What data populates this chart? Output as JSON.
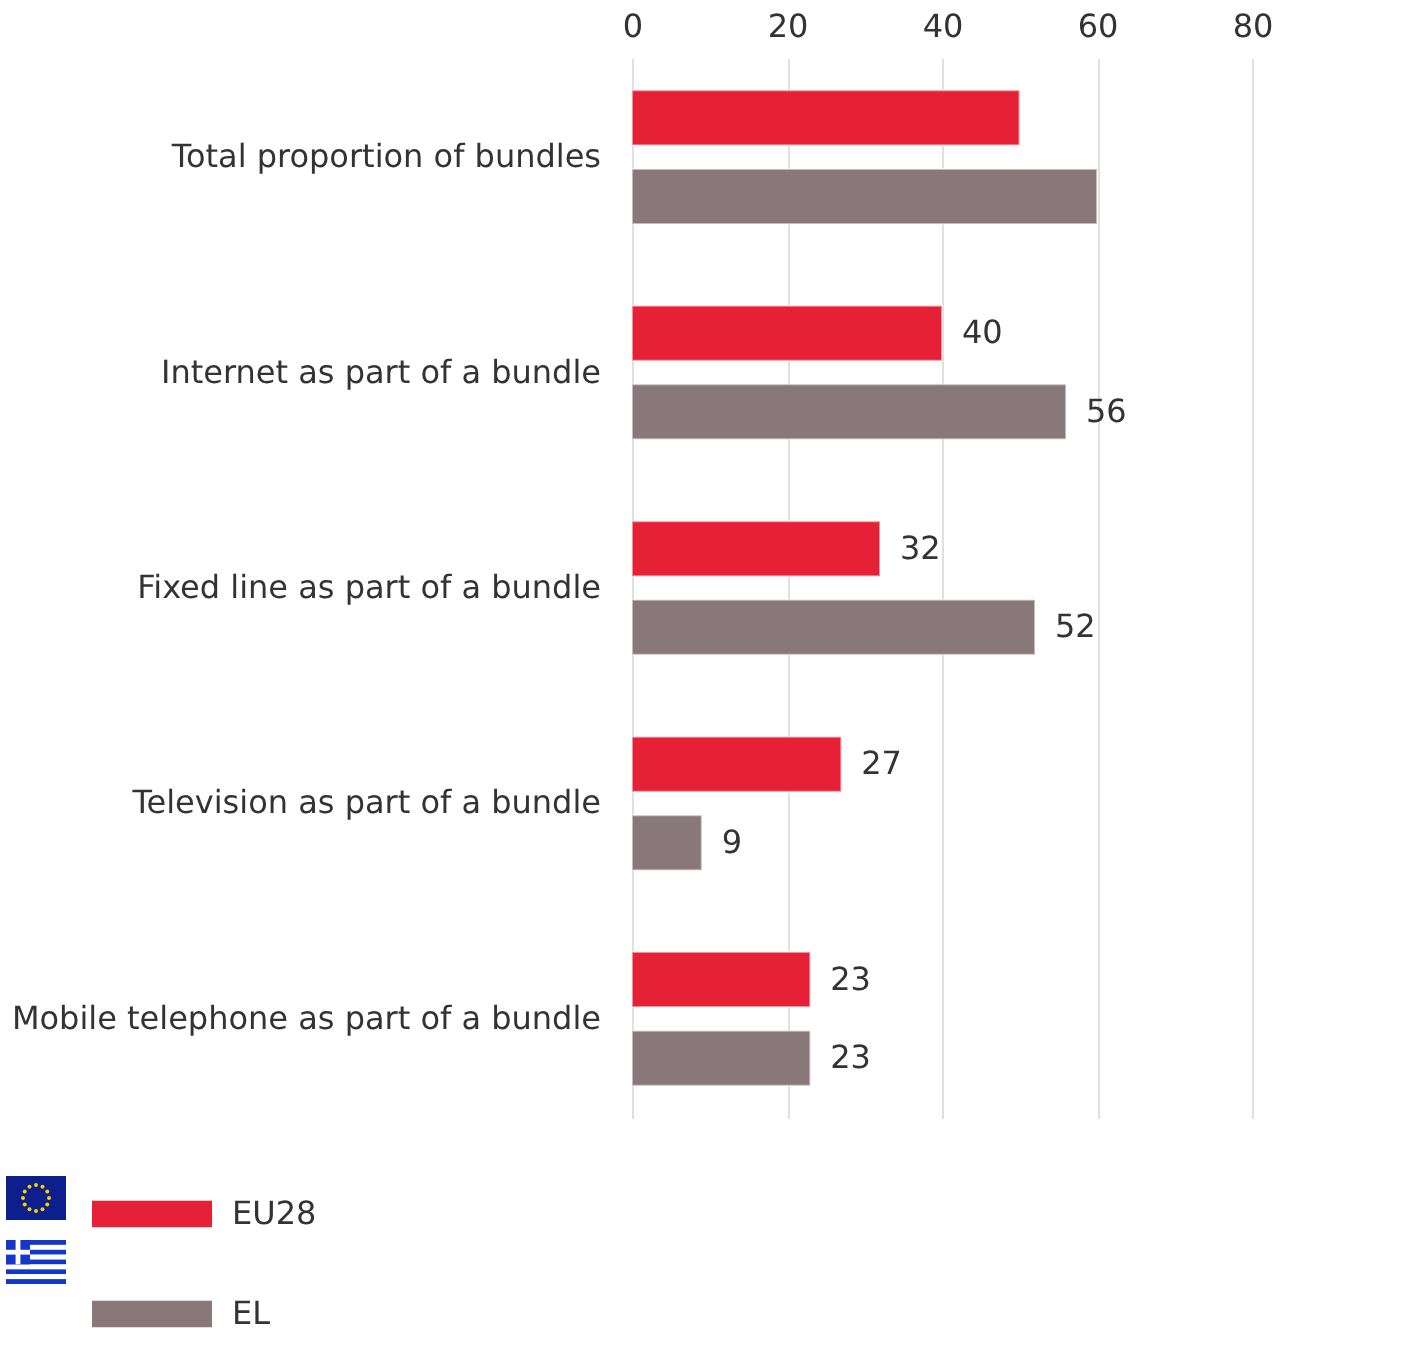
{
  "chart_data": {
    "type": "bar",
    "orientation": "horizontal",
    "categories": [
      "Total proportion of bundles",
      "Internet as part of a bundle",
      "Fixed line as part of a bundle",
      "Television as part of a bundle",
      "Mobile telephone as part of a bundle"
    ],
    "series": [
      {
        "name": "EU28",
        "color": "#e62036",
        "values": [
          50,
          40,
          32,
          27,
          23
        ],
        "value_labels": [
          null,
          "40",
          "32",
          "27",
          "23"
        ]
      },
      {
        "name": "EL",
        "color": "#887879",
        "values": [
          60,
          56,
          52,
          9,
          23
        ],
        "value_labels": [
          null,
          "56",
          "52",
          "9",
          "23"
        ]
      }
    ],
    "xlim": [
      0,
      80
    ],
    "xticks": [
      0,
      20,
      40,
      60,
      80
    ],
    "grid": "x",
    "legend": "bottom left"
  }
}
